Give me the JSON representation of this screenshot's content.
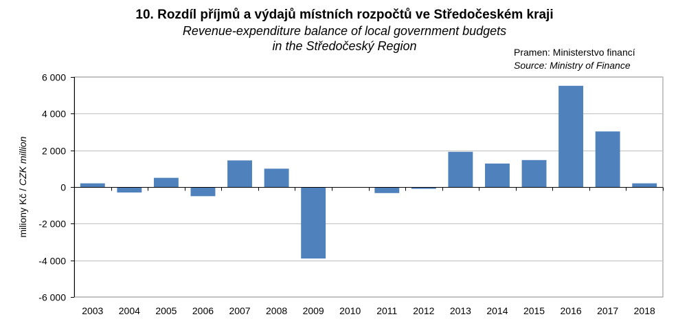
{
  "header": {
    "title": "10. Rozdíl příjmů a výdajů místních rozpočtů ve Středočeském kraji",
    "subtitle_line1": "Revenue-expenditure balance of local government budgets",
    "subtitle_line2": "in the Středočeský Region",
    "source_cz": "Pramen: Ministerstvo financí",
    "source_en": "Source: Ministry of Finance"
  },
  "chart_data": {
    "type": "bar",
    "title": "10. Rozdíl příjmů a výdajů místních rozpočtů ve Středočeském kraji",
    "subtitle": "Revenue-expenditure balance of local government budgets in the Středočeský Region",
    "ylabel_cz": "miliony Kč",
    "ylabel_sep": " / ",
    "ylabel_en": "CZK million",
    "xlabel": "",
    "ylim": [
      -6000,
      6000
    ],
    "yticks": [
      6000,
      4000,
      2000,
      0,
      -2000,
      -4000,
      -6000
    ],
    "ytick_labels": [
      "6 000",
      "4 000",
      "2 000",
      "0",
      "-2 000",
      "-4 000",
      "-6 000"
    ],
    "grid": true,
    "legend": "none",
    "bar_color": "#4f81bd",
    "categories": [
      "2003",
      "2004",
      "2005",
      "2006",
      "2007",
      "2008",
      "2009",
      "2010",
      "2011",
      "2012",
      "2013",
      "2014",
      "2015",
      "2016",
      "2017",
      "2018"
    ],
    "values": [
      200,
      -300,
      500,
      -500,
      1450,
      1000,
      -3900,
      0,
      -330,
      -100,
      1920,
      1280,
      1470,
      5520,
      3030,
      200
    ]
  }
}
